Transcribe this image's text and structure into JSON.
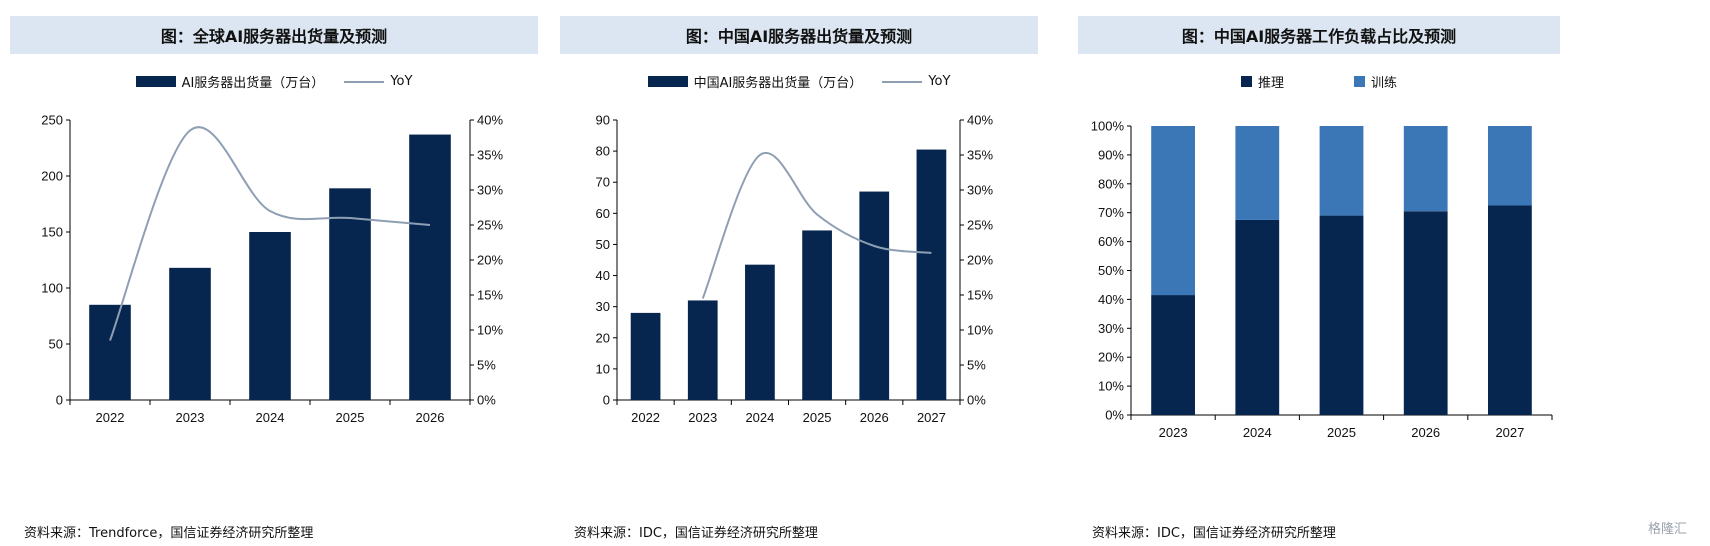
{
  "panels": [
    {
      "title": "图：全球AI服务器出货量及预测",
      "legend_bar": "AI服务器出货量（万台）",
      "legend_line": "YoY",
      "source": "资料来源：Trendforce，国信证券经济研究所整理"
    },
    {
      "title": "图：中国AI服务器出货量及预测",
      "legend_bar": "中国AI服务器出货量（万台）",
      "legend_line": "YoY",
      "source": "资料来源：IDC，国信证券经济研究所整理"
    },
    {
      "title": "图：中国AI服务器工作负载占比及预测",
      "legend_s1": "推理",
      "legend_s2": "训练",
      "source": "资料来源：IDC，国信证券经济研究所整理"
    }
  ],
  "watermark": "格隆汇",
  "colors": {
    "bar": "#06264f",
    "bar_light": "#3b77b6",
    "line": "#8f9fb3",
    "title_bg": "#dce6f2"
  },
  "chart_data": [
    {
      "type": "bar",
      "title": "图：全球AI服务器出货量及预测",
      "categories": [
        "2022",
        "2023",
        "2024",
        "2025",
        "2026"
      ],
      "series": [
        {
          "name": "AI服务器出货量（万台）",
          "type": "bar",
          "axis": "left",
          "values": [
            85,
            118,
            150,
            189,
            237
          ]
        },
        {
          "name": "YoY",
          "type": "line",
          "axis": "right",
          "values": [
            0.085,
            0.385,
            0.27,
            0.26,
            0.25
          ]
        }
      ],
      "ylim": [
        0,
        250
      ],
      "yticks": [
        0,
        50,
        100,
        150,
        200,
        250
      ],
      "y2lim": [
        0,
        0.4
      ],
      "y2ticks": [
        "0%",
        "5%",
        "10%",
        "15%",
        "20%",
        "25%",
        "30%",
        "35%",
        "40%"
      ],
      "legend": "top"
    },
    {
      "type": "bar",
      "title": "图：中国AI服务器出货量及预测",
      "categories": [
        "2022",
        "2023",
        "2024",
        "2025",
        "2026",
        "2027"
      ],
      "series": [
        {
          "name": "中国AI服务器出货量（万台）",
          "type": "bar",
          "axis": "left",
          "values": [
            28,
            32,
            43.5,
            54.5,
            67,
            80.5
          ]
        },
        {
          "name": "YoY",
          "type": "line",
          "axis": "right",
          "values": [
            null,
            0.145,
            0.35,
            0.265,
            0.22,
            0.21
          ]
        }
      ],
      "ylim": [
        0,
        90
      ],
      "yticks": [
        0,
        10,
        20,
        30,
        40,
        50,
        60,
        70,
        80,
        90
      ],
      "y2lim": [
        0,
        0.4
      ],
      "y2ticks": [
        "0%",
        "5%",
        "10%",
        "15%",
        "20%",
        "25%",
        "30%",
        "35%",
        "40%"
      ],
      "legend": "top"
    },
    {
      "type": "bar",
      "stacked": true,
      "title": "图：中国AI服务器工作负载占比及预测",
      "categories": [
        "2023",
        "2024",
        "2025",
        "2026",
        "2027"
      ],
      "series": [
        {
          "name": "推理",
          "values": [
            41.5,
            67.5,
            69,
            70.5,
            72.5
          ]
        },
        {
          "name": "训练",
          "values": [
            58.5,
            32.5,
            31,
            29.5,
            27.5
          ]
        }
      ],
      "ylim": [
        0,
        100
      ],
      "yticks": [
        "0%",
        "10%",
        "20%",
        "30%",
        "40%",
        "50%",
        "60%",
        "70%",
        "80%",
        "90%",
        "100%"
      ],
      "legend": "top"
    }
  ]
}
